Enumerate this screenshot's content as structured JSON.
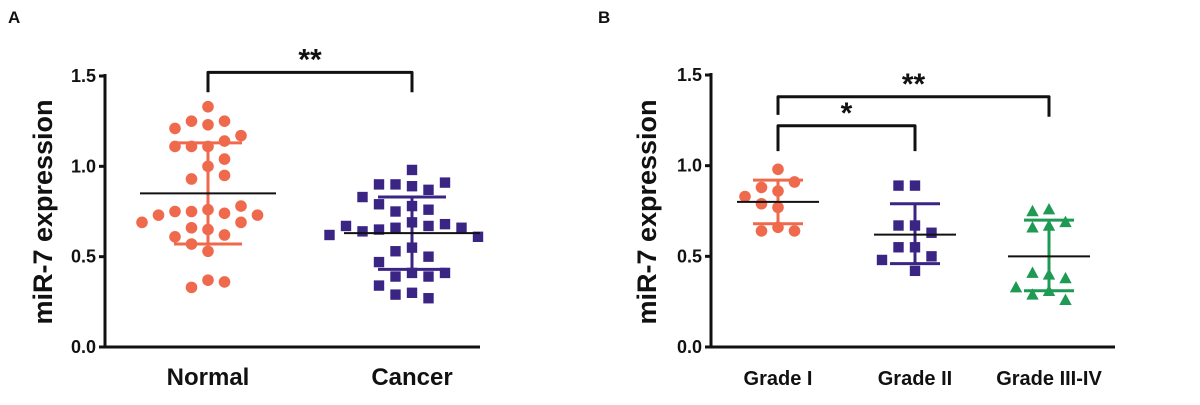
{
  "chart_data": [
    {
      "panel_label": "A",
      "type": "scatter",
      "subtype": "dot-plot-mean-sd",
      "ylabel": "miR-7 expression",
      "ylim": [
        0,
        1.5
      ],
      "yticks": [
        "0.0",
        "0.5",
        "1.0",
        "1.5"
      ],
      "grid": false,
      "categories": [
        "Normal",
        "Cancer"
      ],
      "series": [
        {
          "category": "Normal",
          "marker": "circle",
          "color": "#ef6a4c",
          "values": [
            1.33,
            1.25,
            1.23,
            1.25,
            1.21,
            1.17,
            1.11,
            1.11,
            1.14,
            1.11,
            1.04,
            1.0,
            0.93,
            0.95,
            0.76,
            0.75,
            0.74,
            0.75,
            0.78,
            0.73,
            0.73,
            0.69,
            0.69,
            0.65,
            0.66,
            0.62,
            0.61,
            0.57,
            0.53,
            0.37,
            0.33,
            0.36
          ],
          "mean": 0.85,
          "sd_low": 0.57,
          "sd_high": 1.13
        },
        {
          "category": "Cancer",
          "marker": "square",
          "color": "#3b2584",
          "values": [
            0.98,
            0.9,
            0.89,
            0.87,
            0.9,
            0.91,
            0.83,
            0.78,
            0.75,
            0.76,
            0.79,
            0.69,
            0.67,
            0.66,
            0.65,
            0.68,
            0.64,
            0.66,
            0.67,
            0.61,
            0.62,
            0.55,
            0.53,
            0.5,
            0.47,
            0.41,
            0.39,
            0.39,
            0.41,
            0.34,
            0.3,
            0.29,
            0.27
          ],
          "mean": 0.63,
          "sd_low": 0.43,
          "sd_high": 0.83
        }
      ],
      "significance": [
        {
          "from": "Normal",
          "to": "Cancer",
          "label": "**",
          "level": 1.52,
          "tips": [
            1.41,
            1.41
          ]
        }
      ]
    },
    {
      "panel_label": "B",
      "type": "scatter",
      "subtype": "dot-plot-mean-sd",
      "ylabel": "miR-7 expression",
      "ylim": [
        0,
        1.5
      ],
      "yticks": [
        "0.0",
        "0.5",
        "1.0",
        "1.5"
      ],
      "grid": false,
      "categories": [
        "Grade I",
        "Grade II",
        "Grade III-IV"
      ],
      "series": [
        {
          "category": "Grade I",
          "marker": "circle",
          "color": "#ef6a4c",
          "values": [
            0.98,
            0.86,
            0.88,
            0.91,
            0.83,
            0.79,
            0.77,
            0.66,
            0.64,
            0.64
          ],
          "mean": 0.8,
          "sd_low": 0.68,
          "sd_high": 0.92
        },
        {
          "category": "Grade II",
          "marker": "square",
          "color": "#3b2584",
          "values": [
            0.89,
            0.89,
            0.67,
            0.67,
            0.63,
            0.55,
            0.55,
            0.5,
            0.48,
            0.42
          ],
          "mean": 0.62,
          "sd_low": 0.46,
          "sd_high": 0.79
        },
        {
          "category": "Grade III-IV",
          "marker": "triangle",
          "color": "#1f9a55",
          "values": [
            0.76,
            0.75,
            0.69,
            0.67,
            0.66,
            0.4,
            0.41,
            0.38,
            0.31,
            0.29,
            0.33,
            0.26
          ],
          "mean": 0.5,
          "sd_low": 0.31,
          "sd_high": 0.7
        }
      ],
      "significance": [
        {
          "from": "Grade I",
          "to": "Grade II",
          "label": "*",
          "level": 1.22,
          "tips": [
            1.08,
            1.08
          ]
        },
        {
          "from": "Grade I",
          "to": "Grade III-IV",
          "label": "**",
          "level": 1.38,
          "tips": [
            1.28,
            1.27
          ]
        }
      ]
    }
  ]
}
